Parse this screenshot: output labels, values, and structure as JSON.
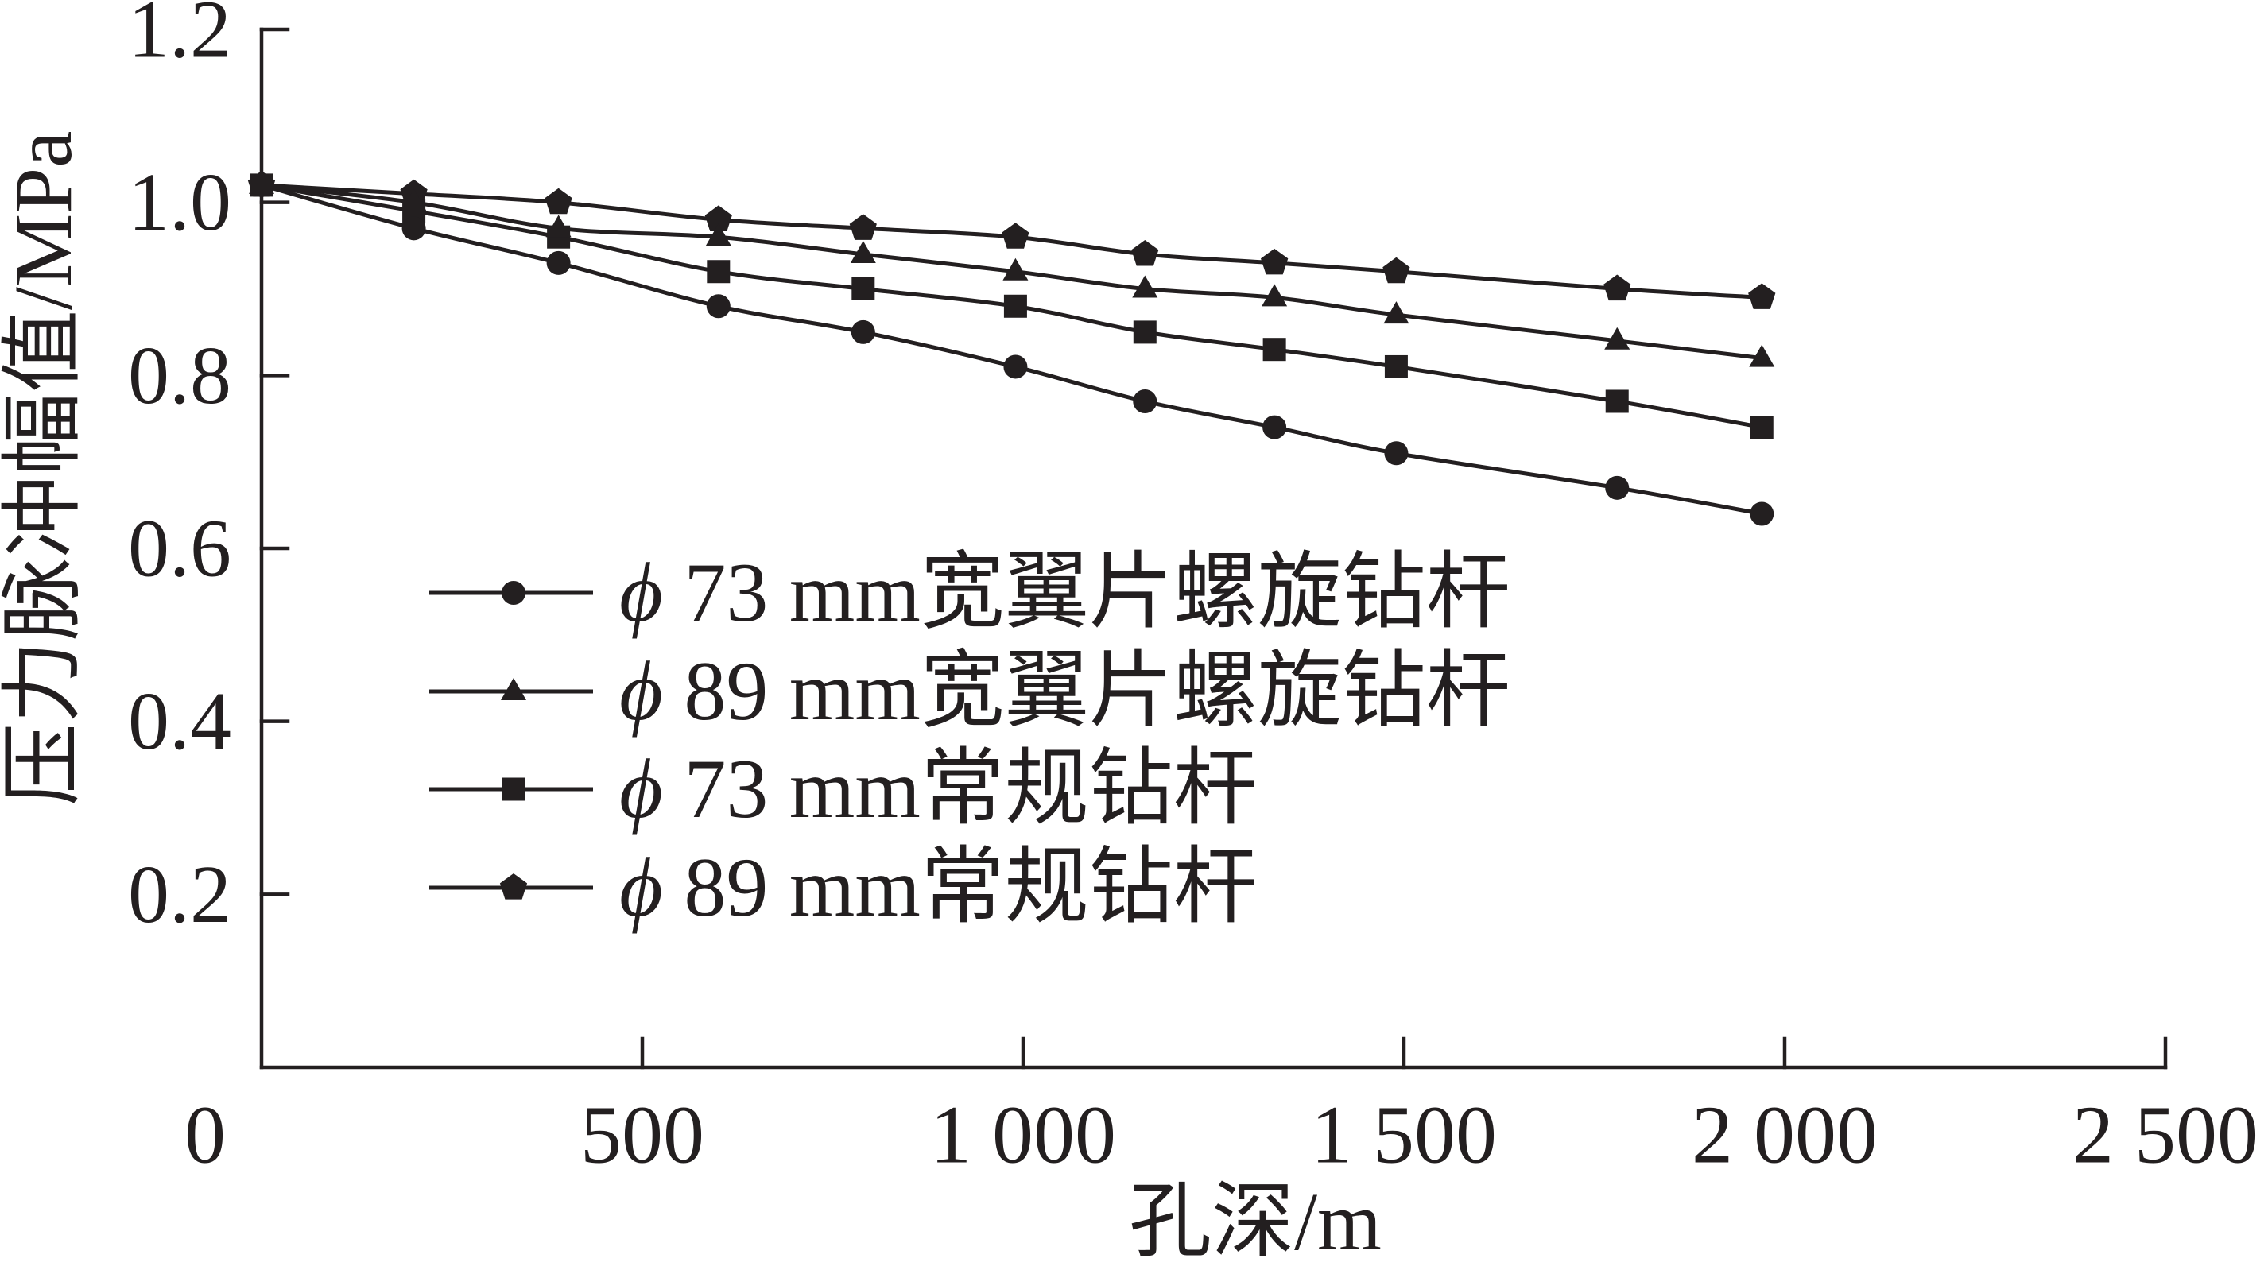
{
  "chart_data": {
    "type": "line",
    "xlabel": "孔深/m",
    "ylabel": "压力脉冲幅值/MPa",
    "xlim": [
      0,
      2500
    ],
    "ylim": [
      0,
      1.2
    ],
    "x_ticks": [
      0,
      500,
      1000,
      1500,
      2000,
      2500
    ],
    "x_tick_labels": [
      "0",
      "500",
      "1 000",
      "1 500",
      "2 000",
      "2 500"
    ],
    "y_ticks": [
      0.2,
      0.4,
      0.6,
      0.8,
      1.0,
      1.2
    ],
    "y_tick_labels": [
      "0.2",
      "0.4",
      "0.6",
      "0.8",
      "1.0",
      "1.2"
    ],
    "grid": false,
    "legend_position": "lower-left",
    "line_color": "#231f20",
    "x": [
      0,
      200,
      390,
      600,
      790,
      990,
      1160,
      1330,
      1490,
      1780,
      1970
    ],
    "series": [
      {
        "name": "ϕ 73 mm宽翼片螺旋钻杆",
        "marker": "circle",
        "values": [
          1.02,
          0.97,
          0.93,
          0.88,
          0.85,
          0.81,
          0.77,
          0.74,
          0.71,
          0.67,
          0.64
        ]
      },
      {
        "name": "ϕ 89 mm宽翼片螺旋钻杆",
        "marker": "triangle",
        "values": [
          1.02,
          1.0,
          0.97,
          0.96,
          0.94,
          0.92,
          0.9,
          0.89,
          0.87,
          0.84,
          0.82
        ]
      },
      {
        "name": "ϕ 73 mm常规钻杆",
        "marker": "square",
        "values": [
          1.02,
          0.99,
          0.96,
          0.92,
          0.9,
          0.88,
          0.85,
          0.83,
          0.81,
          0.77,
          0.74
        ]
      },
      {
        "name": "ϕ 89 mm常规钻杆",
        "marker": "pentagon",
        "values": [
          1.02,
          1.01,
          1.0,
          0.98,
          0.97,
          0.96,
          0.94,
          0.93,
          0.92,
          0.9,
          0.89
        ]
      }
    ]
  }
}
